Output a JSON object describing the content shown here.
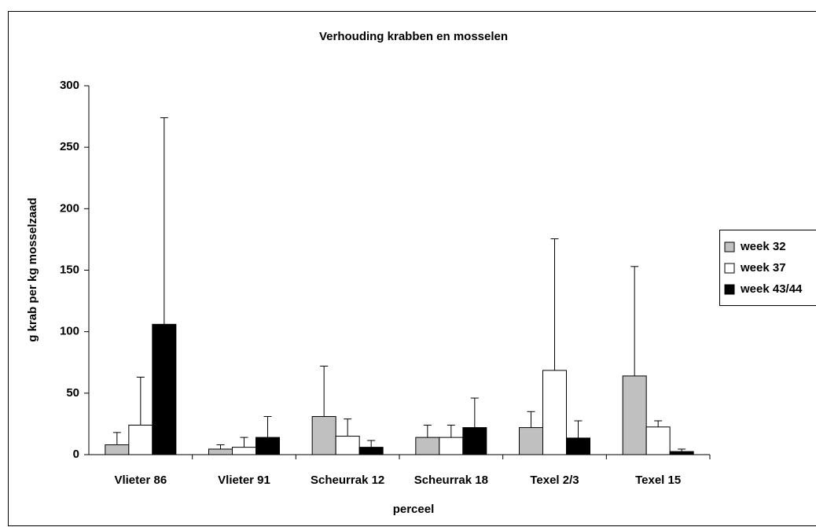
{
  "chart_data": {
    "type": "bar",
    "title": "Verhouding krabben en mosselen",
    "x_label": "perceel",
    "y_label": "g krab per kg mosselzaad",
    "categories": [
      "Vlieter 86",
      "Vlieter 91",
      "Scheurrak 12",
      "Scheurrak 18",
      "Texel 2/3",
      "Texel 15"
    ],
    "series": [
      {
        "name": "week 32",
        "color": "#c0c0c0",
        "values": [
          8,
          4.5,
          31,
          14,
          22,
          64
        ],
        "errors": [
          10,
          3.5,
          41,
          10,
          13,
          89
        ]
      },
      {
        "name": "week 37",
        "color": "#ffffff",
        "values": [
          24,
          6,
          15,
          14,
          68.5,
          22.5
        ],
        "errors": [
          39,
          8,
          14,
          10,
          107,
          5
        ]
      },
      {
        "name": "week 43/44",
        "color": "#000000",
        "values": [
          106,
          14,
          6,
          22,
          13.5,
          2.5
        ],
        "errors": [
          168,
          17,
          5.5,
          24,
          14,
          2
        ]
      }
    ],
    "ylim": [
      0,
      300
    ],
    "yticks": [
      0,
      50,
      100,
      150,
      200,
      250,
      300
    ],
    "legend": "right",
    "grid": false
  }
}
